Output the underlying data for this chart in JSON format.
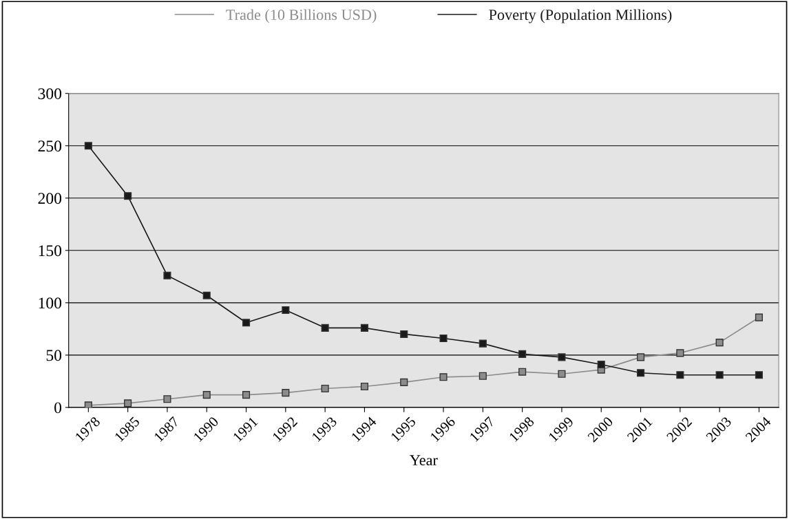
{
  "chart_data": {
    "type": "line",
    "xlabel": "Year",
    "categories": [
      "1978",
      "1985",
      "1987",
      "1990",
      "1991",
      "1992",
      "1993",
      "1994",
      "1995",
      "1996",
      "1997",
      "1998",
      "1999",
      "2000",
      "2001",
      "2002",
      "2003",
      "2004"
    ],
    "series": [
      {
        "name": "Trade (10 Billions USD)",
        "color": "#8c8c8c",
        "values": [
          2,
          4,
          8,
          12,
          12,
          14,
          18,
          20,
          24,
          29,
          30,
          34,
          32,
          36,
          48,
          52,
          62,
          86
        ]
      },
      {
        "name": "Poverty (Population Millions)",
        "color": "#1a1a1a",
        "values": [
          250,
          202,
          126,
          107,
          81,
          93,
          76,
          76,
          70,
          66,
          61,
          51,
          48,
          41,
          33,
          31,
          31,
          31
        ]
      }
    ],
    "ylim": [
      0,
      300
    ],
    "yticks": [
      0,
      50,
      100,
      150,
      200,
      250,
      300
    ],
    "grid": "y",
    "legend": "top",
    "marker": "square",
    "line_style": "solid"
  }
}
